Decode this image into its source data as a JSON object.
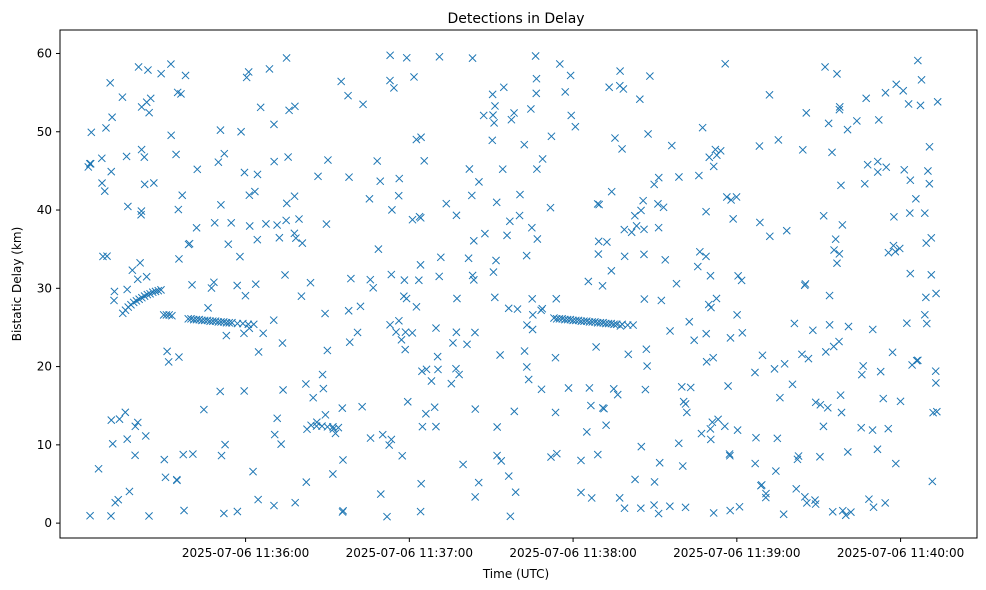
{
  "chart_data": {
    "type": "scatter",
    "title": "Detections in Delay",
    "xlabel": "Time (UTC)",
    "ylabel": "Bistatic Delay (km)",
    "x_tick_labels": [
      "2025-07-06 11:36:00",
      "2025-07-06 11:37:00",
      "2025-07-06 11:38:00",
      "2025-07-06 11:39:00",
      "2025-07-06 11:40:00"
    ],
    "x_ticks": [
      "2025-07-06T11:36:00Z",
      "2025-07-06T11:37:00Z",
      "2025-07-06T11:38:00Z",
      "2025-07-06T11:39:00Z",
      "2025-07-06T11:40:00Z"
    ],
    "y_ticks": [
      0,
      10,
      20,
      30,
      40,
      50,
      60
    ],
    "xlim": [
      "2025-07-06T11:34:52Z",
      "2025-07-06T11:40:28Z"
    ],
    "ylim": [
      -1.9,
      63
    ],
    "marker": "x",
    "color": "#1f77b4",
    "grid": false,
    "legend": "none",
    "series": [
      {
        "time_start": "2025-07-06T11:35:02Z",
        "time_end": "2025-07-06T11:40:15Z",
        "clutter_count": 560,
        "clutter_delay_range": [
          0.8,
          59.8
        ],
        "tracks": [
          {
            "points": [
              [
                "2025-07-06T11:35:15Z",
                26.8
              ],
              [
                "2025-07-06T11:35:16Z",
                27.2
              ],
              [
                "2025-07-06T11:35:17Z",
                27.6
              ],
              [
                "2025-07-06T11:35:18Z",
                27.9
              ],
              [
                "2025-07-06T11:35:19Z",
                28.2
              ],
              [
                "2025-07-06T11:35:20Z",
                28.4
              ],
              [
                "2025-07-06T11:35:21Z",
                28.6
              ],
              [
                "2025-07-06T11:35:22Z",
                28.8
              ],
              [
                "2025-07-06T11:35:23Z",
                29.0
              ],
              [
                "2025-07-06T11:35:24Z",
                29.2
              ],
              [
                "2025-07-06T11:35:25Z",
                29.3
              ],
              [
                "2025-07-06T11:35:26Z",
                29.5
              ],
              [
                "2025-07-06T11:35:27Z",
                29.6
              ],
              [
                "2025-07-06T11:35:28Z",
                29.7
              ],
              [
                "2025-07-06T11:35:29Z",
                29.8
              ],
              [
                "2025-07-06T11:35:30Z",
                26.6
              ],
              [
                "2025-07-06T11:35:31Z",
                26.6
              ],
              [
                "2025-07-06T11:35:32Z",
                26.6
              ],
              [
                "2025-07-06T11:35:33Z",
                26.5
              ]
            ]
          },
          {
            "points": [
              [
                "2025-07-06T11:35:39Z",
                26.1
              ],
              [
                "2025-07-06T11:35:40Z",
                26.1
              ],
              [
                "2025-07-06T11:35:41Z",
                26.0
              ],
              [
                "2025-07-06T11:35:42Z",
                26.0
              ],
              [
                "2025-07-06T11:35:43Z",
                26.0
              ],
              [
                "2025-07-06T11:35:44Z",
                25.9
              ],
              [
                "2025-07-06T11:35:45Z",
                25.9
              ],
              [
                "2025-07-06T11:35:46Z",
                25.9
              ],
              [
                "2025-07-06T11:35:47Z",
                25.8
              ],
              [
                "2025-07-06T11:35:48Z",
                25.8
              ],
              [
                "2025-07-06T11:35:49Z",
                25.8
              ],
              [
                "2025-07-06T11:35:50Z",
                25.7
              ],
              [
                "2025-07-06T11:35:51Z",
                25.7
              ],
              [
                "2025-07-06T11:35:52Z",
                25.7
              ],
              [
                "2025-07-06T11:35:53Z",
                25.6
              ],
              [
                "2025-07-06T11:35:54Z",
                25.6
              ],
              [
                "2025-07-06T11:35:55Z",
                25.6
              ],
              [
                "2025-07-06T11:35:57Z",
                25.5
              ],
              [
                "2025-07-06T11:35:59Z",
                25.5
              ],
              [
                "2025-07-06T11:36:01Z",
                25.4
              ],
              [
                "2025-07-06T11:36:03Z",
                25.4
              ]
            ]
          },
          {
            "points": [
              [
                "2025-07-06T11:36:24Z",
                12.5
              ],
              [
                "2025-07-06T11:36:26Z",
                12.4
              ],
              [
                "2025-07-06T11:36:28Z",
                12.4
              ],
              [
                "2025-07-06T11:36:30Z",
                12.3
              ],
              [
                "2025-07-06T11:36:32Z",
                12.3
              ],
              [
                "2025-07-06T11:36:34Z",
                12.2
              ]
            ]
          },
          {
            "points": [
              [
                "2025-07-06T11:37:53Z",
                26.2
              ],
              [
                "2025-07-06T11:37:54Z",
                26.1
              ],
              [
                "2025-07-06T11:37:55Z",
                26.1
              ],
              [
                "2025-07-06T11:37:56Z",
                26.1
              ],
              [
                "2025-07-06T11:37:57Z",
                26.0
              ],
              [
                "2025-07-06T11:37:58Z",
                26.0
              ],
              [
                "2025-07-06T11:37:59Z",
                26.0
              ],
              [
                "2025-07-06T11:38:00Z",
                25.9
              ],
              [
                "2025-07-06T11:38:01Z",
                25.9
              ],
              [
                "2025-07-06T11:38:02Z",
                25.9
              ],
              [
                "2025-07-06T11:38:03Z",
                25.8
              ],
              [
                "2025-07-06T11:38:04Z",
                25.8
              ],
              [
                "2025-07-06T11:38:05Z",
                25.8
              ],
              [
                "2025-07-06T11:38:06Z",
                25.7
              ],
              [
                "2025-07-06T11:38:07Z",
                25.7
              ],
              [
                "2025-07-06T11:38:08Z",
                25.7
              ],
              [
                "2025-07-06T11:38:09Z",
                25.6
              ],
              [
                "2025-07-06T11:38:10Z",
                25.6
              ],
              [
                "2025-07-06T11:38:11Z",
                25.6
              ],
              [
                "2025-07-06T11:38:12Z",
                25.5
              ],
              [
                "2025-07-06T11:38:13Z",
                25.5
              ],
              [
                "2025-07-06T11:38:14Z",
                25.5
              ],
              [
                "2025-07-06T11:38:15Z",
                25.4
              ],
              [
                "2025-07-06T11:38:16Z",
                25.4
              ],
              [
                "2025-07-06T11:38:18Z",
                25.4
              ],
              [
                "2025-07-06T11:38:20Z",
                25.3
              ],
              [
                "2025-07-06T11:38:22Z",
                25.3
              ]
            ]
          }
        ]
      }
    ]
  }
}
